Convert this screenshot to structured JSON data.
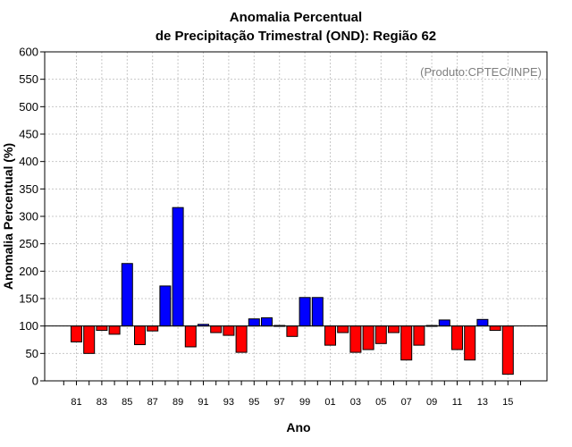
{
  "chart_data": {
    "type": "bar",
    "title": [
      "Anomalia Percentual",
      "de Precipitação Trimestral (OND): Região 62"
    ],
    "xlabel": "Ano",
    "ylabel": "Anomalia Percentual (%)",
    "credit": "(Produto:CPTEC/INPE)",
    "ylim": [
      0,
      600
    ],
    "yticks": [
      0,
      50,
      100,
      150,
      200,
      250,
      300,
      350,
      400,
      450,
      500,
      550,
      600
    ],
    "baseline": 100,
    "grid": true,
    "xtick_labels": [
      "81",
      "83",
      "85",
      "87",
      "89",
      "91",
      "93",
      "95",
      "97",
      "99",
      "01",
      "03",
      "05",
      "07",
      "09",
      "11",
      "13",
      "15"
    ],
    "years": [
      "81",
      "82",
      "83",
      "84",
      "85",
      "86",
      "87",
      "88",
      "89",
      "90",
      "91",
      "92",
      "93",
      "94",
      "95",
      "96",
      "97",
      "98",
      "99",
      "00",
      "01",
      "02",
      "03",
      "04",
      "05",
      "06",
      "07",
      "08",
      "09",
      "10",
      "11",
      "12",
      "13",
      "14",
      "15"
    ],
    "values": [
      71,
      50,
      92,
      85,
      214,
      66,
      91,
      173,
      316,
      62,
      103,
      88,
      83,
      52,
      113,
      115,
      101,
      81,
      152,
      152,
      65,
      88,
      52,
      57,
      68,
      88,
      38,
      65,
      101,
      111,
      57,
      38,
      112,
      92,
      12
    ],
    "colors": {
      "above": "#0000ff",
      "below": "#ff0000"
    }
  }
}
